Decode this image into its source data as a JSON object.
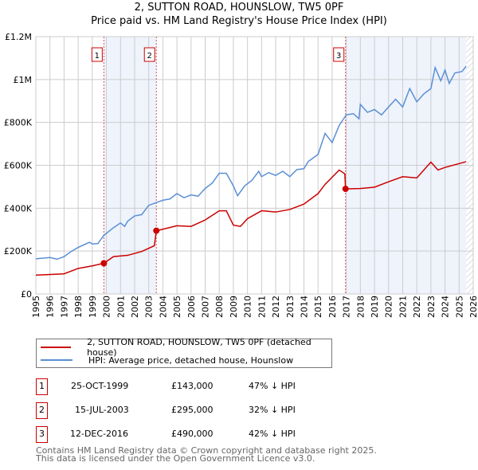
{
  "chart_data": {
    "type": "line",
    "title": "2, SUTTON ROAD, HOUNSLOW, TW5 0PF",
    "subtitle": "Price paid vs. HM Land Registry's House Price Index (HPI)",
    "xlim": [
      1995,
      2026
    ],
    "ylim": [
      0,
      1200000
    ],
    "x_ticks": [
      "1995",
      "1996",
      "1997",
      "1998",
      "1999",
      "2000",
      "2001",
      "2002",
      "2003",
      "2004",
      "2005",
      "2006",
      "2007",
      "2008",
      "2009",
      "2010",
      "2011",
      "2012",
      "2013",
      "2014",
      "2015",
      "2016",
      "2017",
      "2018",
      "2019",
      "2020",
      "2021",
      "2022",
      "2023",
      "2024",
      "2025",
      "2026"
    ],
    "y_ticks": [
      {
        "v": 0,
        "label": "£0"
      },
      {
        "v": 200000,
        "label": "£200K"
      },
      {
        "v": 400000,
        "label": "£400K"
      },
      {
        "v": 600000,
        "label": "£600K"
      },
      {
        "v": 800000,
        "label": "£800K"
      },
      {
        "v": 1000000,
        "label": "£1M"
      },
      {
        "v": 1200000,
        "label": "£1.2M"
      }
    ],
    "grid": true,
    "shaded_periods": [
      [
        1999.82,
        2003.54
      ],
      [
        2016.95,
        2025.5
      ]
    ],
    "forecast_hatch_from": 2025.5,
    "series": [
      {
        "name": "2, SUTTON ROAD, HOUNSLOW, TW5 0PF (detached house)",
        "color": "#cc0000",
        "x": [
          1995,
          1997,
          1998,
          1999,
          1999.82,
          2000.5,
          2001.5,
          2002.5,
          2003.4,
          2003.54,
          2004,
          2005,
          2006,
          2007,
          2008,
          2008.5,
          2009,
          2009.5,
          2010,
          2011,
          2012,
          2013,
          2014,
          2015,
          2015.5,
          2016.5,
          2016.9,
          2016.95,
          2018,
          2019,
          2020,
          2021,
          2022,
          2023,
          2023.5,
          2024,
          2025.5
        ],
        "y": [
          88000,
          94000,
          119000,
          131000,
          143000,
          174000,
          180000,
          198000,
          225000,
          295000,
          302000,
          318000,
          315000,
          345000,
          388000,
          388000,
          321000,
          315000,
          351000,
          388000,
          382000,
          394000,
          419000,
          468000,
          511000,
          578000,
          560000,
          490000,
          492000,
          498000,
          523000,
          547000,
          541000,
          615000,
          578000,
          590000,
          617000
        ]
      },
      {
        "name": "HPI: Average price, detached house, Hounslow",
        "color": "#5b8fd4",
        "x": [
          1995,
          1996,
          1996.5,
          1997,
          1997.5,
          1998,
          1998.8,
          1999,
          1999.4,
          1999.8,
          2000.5,
          2001,
          2001.3,
          2001.5,
          2002,
          2002.5,
          2003,
          2003.5,
          2004,
          2004.5,
          2005,
          2005.5,
          2006,
          2006.5,
          2007,
          2007.5,
          2008,
          2008.5,
          2009,
          2009.3,
          2009.8,
          2010.3,
          2010.8,
          2011,
          2011.5,
          2012,
          2012.5,
          2013,
          2013.5,
          2014,
          2014.3,
          2015,
          2015.5,
          2016,
          2016.5,
          2017,
          2017.5,
          2017.9,
          2018,
          2018.5,
          2019,
          2019.5,
          2020,
          2020.5,
          2021,
          2021.5,
          2022,
          2022.5,
          2023,
          2023.3,
          2023.7,
          2024,
          2024.3,
          2024.7,
          2025.2,
          2025.5
        ],
        "y": [
          164000,
          170000,
          162000,
          174000,
          198000,
          217000,
          241000,
          233000,
          235000,
          272000,
          309000,
          331000,
          315000,
          339000,
          364000,
          370000,
          413000,
          425000,
          437000,
          443000,
          468000,
          449000,
          462000,
          456000,
          492000,
          517000,
          563000,
          563000,
          504000,
          458000,
          504000,
          529000,
          572000,
          547000,
          566000,
          553000,
          572000,
          547000,
          580000,
          584000,
          617000,
          651000,
          749000,
          706000,
          786000,
          835000,
          841000,
          817000,
          884000,
          847000,
          860000,
          835000,
          872000,
          908000,
          872000,
          958000,
          896000,
          933000,
          958000,
          1056000,
          994000,
          1044000,
          982000,
          1031000,
          1037000,
          1062000
        ]
      }
    ],
    "sales": [
      {
        "num": "1",
        "x": 1999.82,
        "price": 143000,
        "date": "25-OCT-1999",
        "price_label": "£143,000",
        "hpi": "47% ↓ HPI"
      },
      {
        "num": "2",
        "x": 2003.54,
        "price": 295000,
        "date": "15-JUL-2003",
        "price_label": "£295,000",
        "hpi": "32% ↓ HPI"
      },
      {
        "num": "3",
        "x": 2016.95,
        "price": 490000,
        "date": "12-DEC-2016",
        "price_label": "£490,000",
        "hpi": "42% ↓ HPI"
      }
    ],
    "legend": [
      "2, SUTTON ROAD, HOUNSLOW, TW5 0PF (detached house)",
      "HPI: Average price, detached house, Hounslow"
    ]
  },
  "footer": [
    "Contains HM Land Registry data © Crown copyright and database right 2025.",
    "This data is licensed under the Open Government Licence v3.0."
  ]
}
